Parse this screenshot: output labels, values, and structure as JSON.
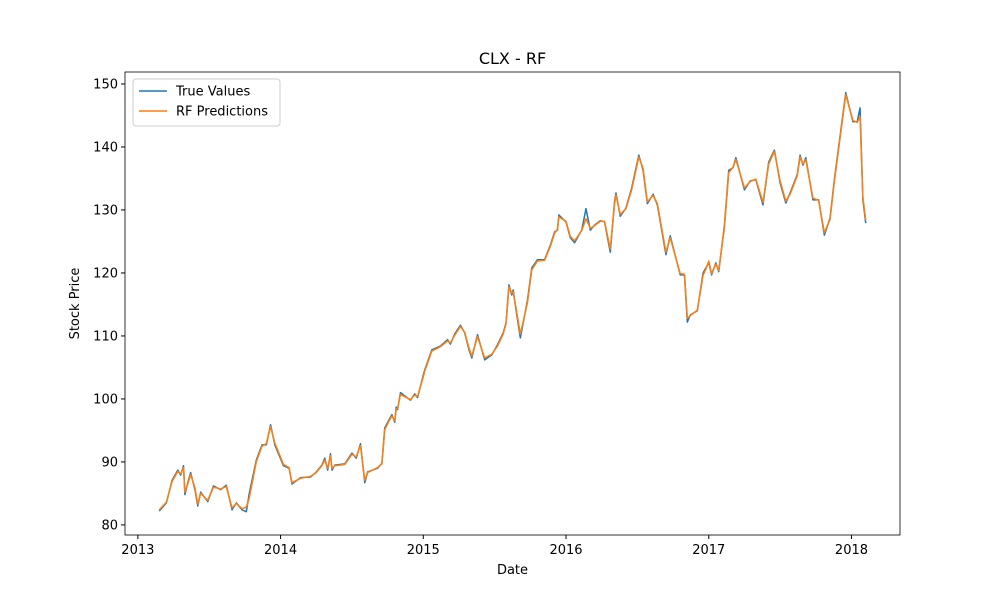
{
  "chart_data": {
    "type": "line",
    "title": "CLX - RF",
    "xlabel": "Date",
    "ylabel": "Stock Price",
    "x": [
      2013.15,
      2013.2,
      2013.24,
      2013.28,
      2013.3,
      2013.32,
      2013.33,
      2013.35,
      2013.37,
      2013.4,
      2013.42,
      2013.44,
      2013.49,
      2013.53,
      2013.58,
      2013.62,
      2013.66,
      2013.69,
      2013.73,
      2013.76,
      2013.78,
      2013.83,
      2013.87,
      2013.9,
      2013.93,
      2013.96,
      2014.02,
      2014.06,
      2014.08,
      2014.14,
      2014.21,
      2014.25,
      2014.29,
      2014.31,
      2014.33,
      2014.35,
      2014.36,
      2014.38,
      2014.45,
      2014.5,
      2014.53,
      2014.56,
      2014.59,
      2014.61,
      2014.68,
      2014.71,
      2014.73,
      2014.76,
      2014.78,
      2014.8,
      2014.81,
      2014.82,
      2014.84,
      2014.91,
      2014.94,
      2014.96,
      2015.0,
      2015.01,
      2015.06,
      2015.12,
      2015.17,
      2015.19,
      2015.22,
      2015.26,
      2015.29,
      2015.32,
      2015.34,
      2015.38,
      2015.43,
      2015.48,
      2015.52,
      2015.56,
      2015.58,
      2015.6,
      2015.62,
      2015.63,
      2015.65,
      2015.68,
      2015.73,
      2015.76,
      2015.8,
      2015.85,
      2015.89,
      2015.92,
      2015.94,
      2015.95,
      2016.0,
      2016.03,
      2016.06,
      2016.11,
      2016.14,
      2016.17,
      2016.2,
      2016.24,
      2016.27,
      2016.31,
      2016.34,
      2016.35,
      2016.38,
      2016.42,
      2016.46,
      2016.51,
      2016.54,
      2016.57,
      2016.61,
      2016.64,
      2016.7,
      2016.73,
      2016.8,
      2016.83,
      2016.85,
      2016.87,
      2016.92,
      2016.96,
      2016.98,
      2017.0,
      2017.02,
      2017.05,
      2017.07,
      2017.11,
      2017.14,
      2017.17,
      2017.19,
      2017.25,
      2017.29,
      2017.33,
      2017.38,
      2017.42,
      2017.46,
      2017.5,
      2017.54,
      2017.57,
      2017.62,
      2017.64,
      2017.66,
      2017.68,
      2017.73,
      2017.77,
      2017.81,
      2017.85,
      2017.88,
      2017.96,
      2018.01,
      2018.04,
      2018.06,
      2018.08,
      2018.1
    ],
    "series": [
      {
        "name": "True Values",
        "color": "#1f77b4",
        "values": [
          82.2,
          83.5,
          87.1,
          88.7,
          87.9,
          89.4,
          84.8,
          86.7,
          88.3,
          85.6,
          83.0,
          85.2,
          83.7,
          86.2,
          85.6,
          86.3,
          82.4,
          83.5,
          82.4,
          82.1,
          84.9,
          90.3,
          92.7,
          92.7,
          95.9,
          92.7,
          89.4,
          89.0,
          86.5,
          87.5,
          87.6,
          88.4,
          89.5,
          90.6,
          88.7,
          91.3,
          88.7,
          89.5,
          89.7,
          91.4,
          90.6,
          92.9,
          86.7,
          88.4,
          89.0,
          89.8,
          95.4,
          96.7,
          97.5,
          96.3,
          98.7,
          98.3,
          101.0,
          99.8,
          100.8,
          100.2,
          103.8,
          104.6,
          107.8,
          108.4,
          109.4,
          108.7,
          110.3,
          111.7,
          110.5,
          107.8,
          106.5,
          110.2,
          106.2,
          107.0,
          108.6,
          110.5,
          112.1,
          118.1,
          116.5,
          117.3,
          114.1,
          109.7,
          115.7,
          120.8,
          122.1,
          122.1,
          124.4,
          126.5,
          126.8,
          129.2,
          128.1,
          125.6,
          124.8,
          126.8,
          130.2,
          126.8,
          127.6,
          128.3,
          128.1,
          123.3,
          131.3,
          132.7,
          129.0,
          130.3,
          133.5,
          138.7,
          136.3,
          131.0,
          132.5,
          130.8,
          122.9,
          125.9,
          119.7,
          119.7,
          112.2,
          113.3,
          114.0,
          120.0,
          120.8,
          121.7,
          119.7,
          121.6,
          120.2,
          127.6,
          136.3,
          136.7,
          138.3,
          133.2,
          134.6,
          134.8,
          130.8,
          137.6,
          139.5,
          134.3,
          131.1,
          132.7,
          135.6,
          138.7,
          137.1,
          138.3,
          131.6,
          131.6,
          126.0,
          128.7,
          134.8,
          148.6,
          144.0,
          144.0,
          146.2,
          131.6,
          127.9
        ]
      },
      {
        "name": "RF Predictions",
        "color": "#ff7f0e",
        "values": [
          82.4,
          83.6,
          86.9,
          88.5,
          88.1,
          89.1,
          85.2,
          86.5,
          88.0,
          85.9,
          83.3,
          85.0,
          83.9,
          86.0,
          85.7,
          86.1,
          82.7,
          83.4,
          82.6,
          82.8,
          84.2,
          90.0,
          92.5,
          92.9,
          95.6,
          93.0,
          89.6,
          89.1,
          86.7,
          87.4,
          87.7,
          88.3,
          89.4,
          90.3,
          89.0,
          91.0,
          89.0,
          89.4,
          89.6,
          91.2,
          90.8,
          92.6,
          87.1,
          88.3,
          89.1,
          89.7,
          95.1,
          96.5,
          97.3,
          96.5,
          98.4,
          98.5,
          100.7,
          99.9,
          100.6,
          100.4,
          103.5,
          104.4,
          107.6,
          108.3,
          109.2,
          108.9,
          110.1,
          111.5,
          110.6,
          108.1,
          106.8,
          109.9,
          106.5,
          107.1,
          108.4,
          110.3,
          112.0,
          117.8,
          116.8,
          117.0,
          114.4,
          110.3,
          115.3,
          120.5,
          121.9,
          122.0,
          124.2,
          126.3,
          126.9,
          128.9,
          128.2,
          125.8,
          125.1,
          126.7,
          128.6,
          127.1,
          127.5,
          128.2,
          128.2,
          123.8,
          130.9,
          132.4,
          129.3,
          130.2,
          133.2,
          138.4,
          136.6,
          131.3,
          132.3,
          131.0,
          123.3,
          125.6,
          119.9,
          119.8,
          112.8,
          113.2,
          114.1,
          119.6,
          120.6,
          121.9,
          119.9,
          121.4,
          120.4,
          127.2,
          135.9,
          136.8,
          138.0,
          133.5,
          134.5,
          134.9,
          131.2,
          137.3,
          139.3,
          134.6,
          131.4,
          132.5,
          135.4,
          138.4,
          137.3,
          138.0,
          131.9,
          131.5,
          126.4,
          128.5,
          134.5,
          148.3,
          144.2,
          143.9,
          144.8,
          132.0,
          128.4
        ]
      }
    ],
    "xlim": [
      2012.91,
      2018.34
    ],
    "xticks": [
      2013,
      2014,
      2015,
      2016,
      2017,
      2018
    ],
    "ylim": [
      78.4,
      151.9
    ],
    "yticks": [
      80,
      90,
      100,
      110,
      120,
      130,
      140,
      150
    ],
    "legend": "upper left",
    "grid": false
  }
}
